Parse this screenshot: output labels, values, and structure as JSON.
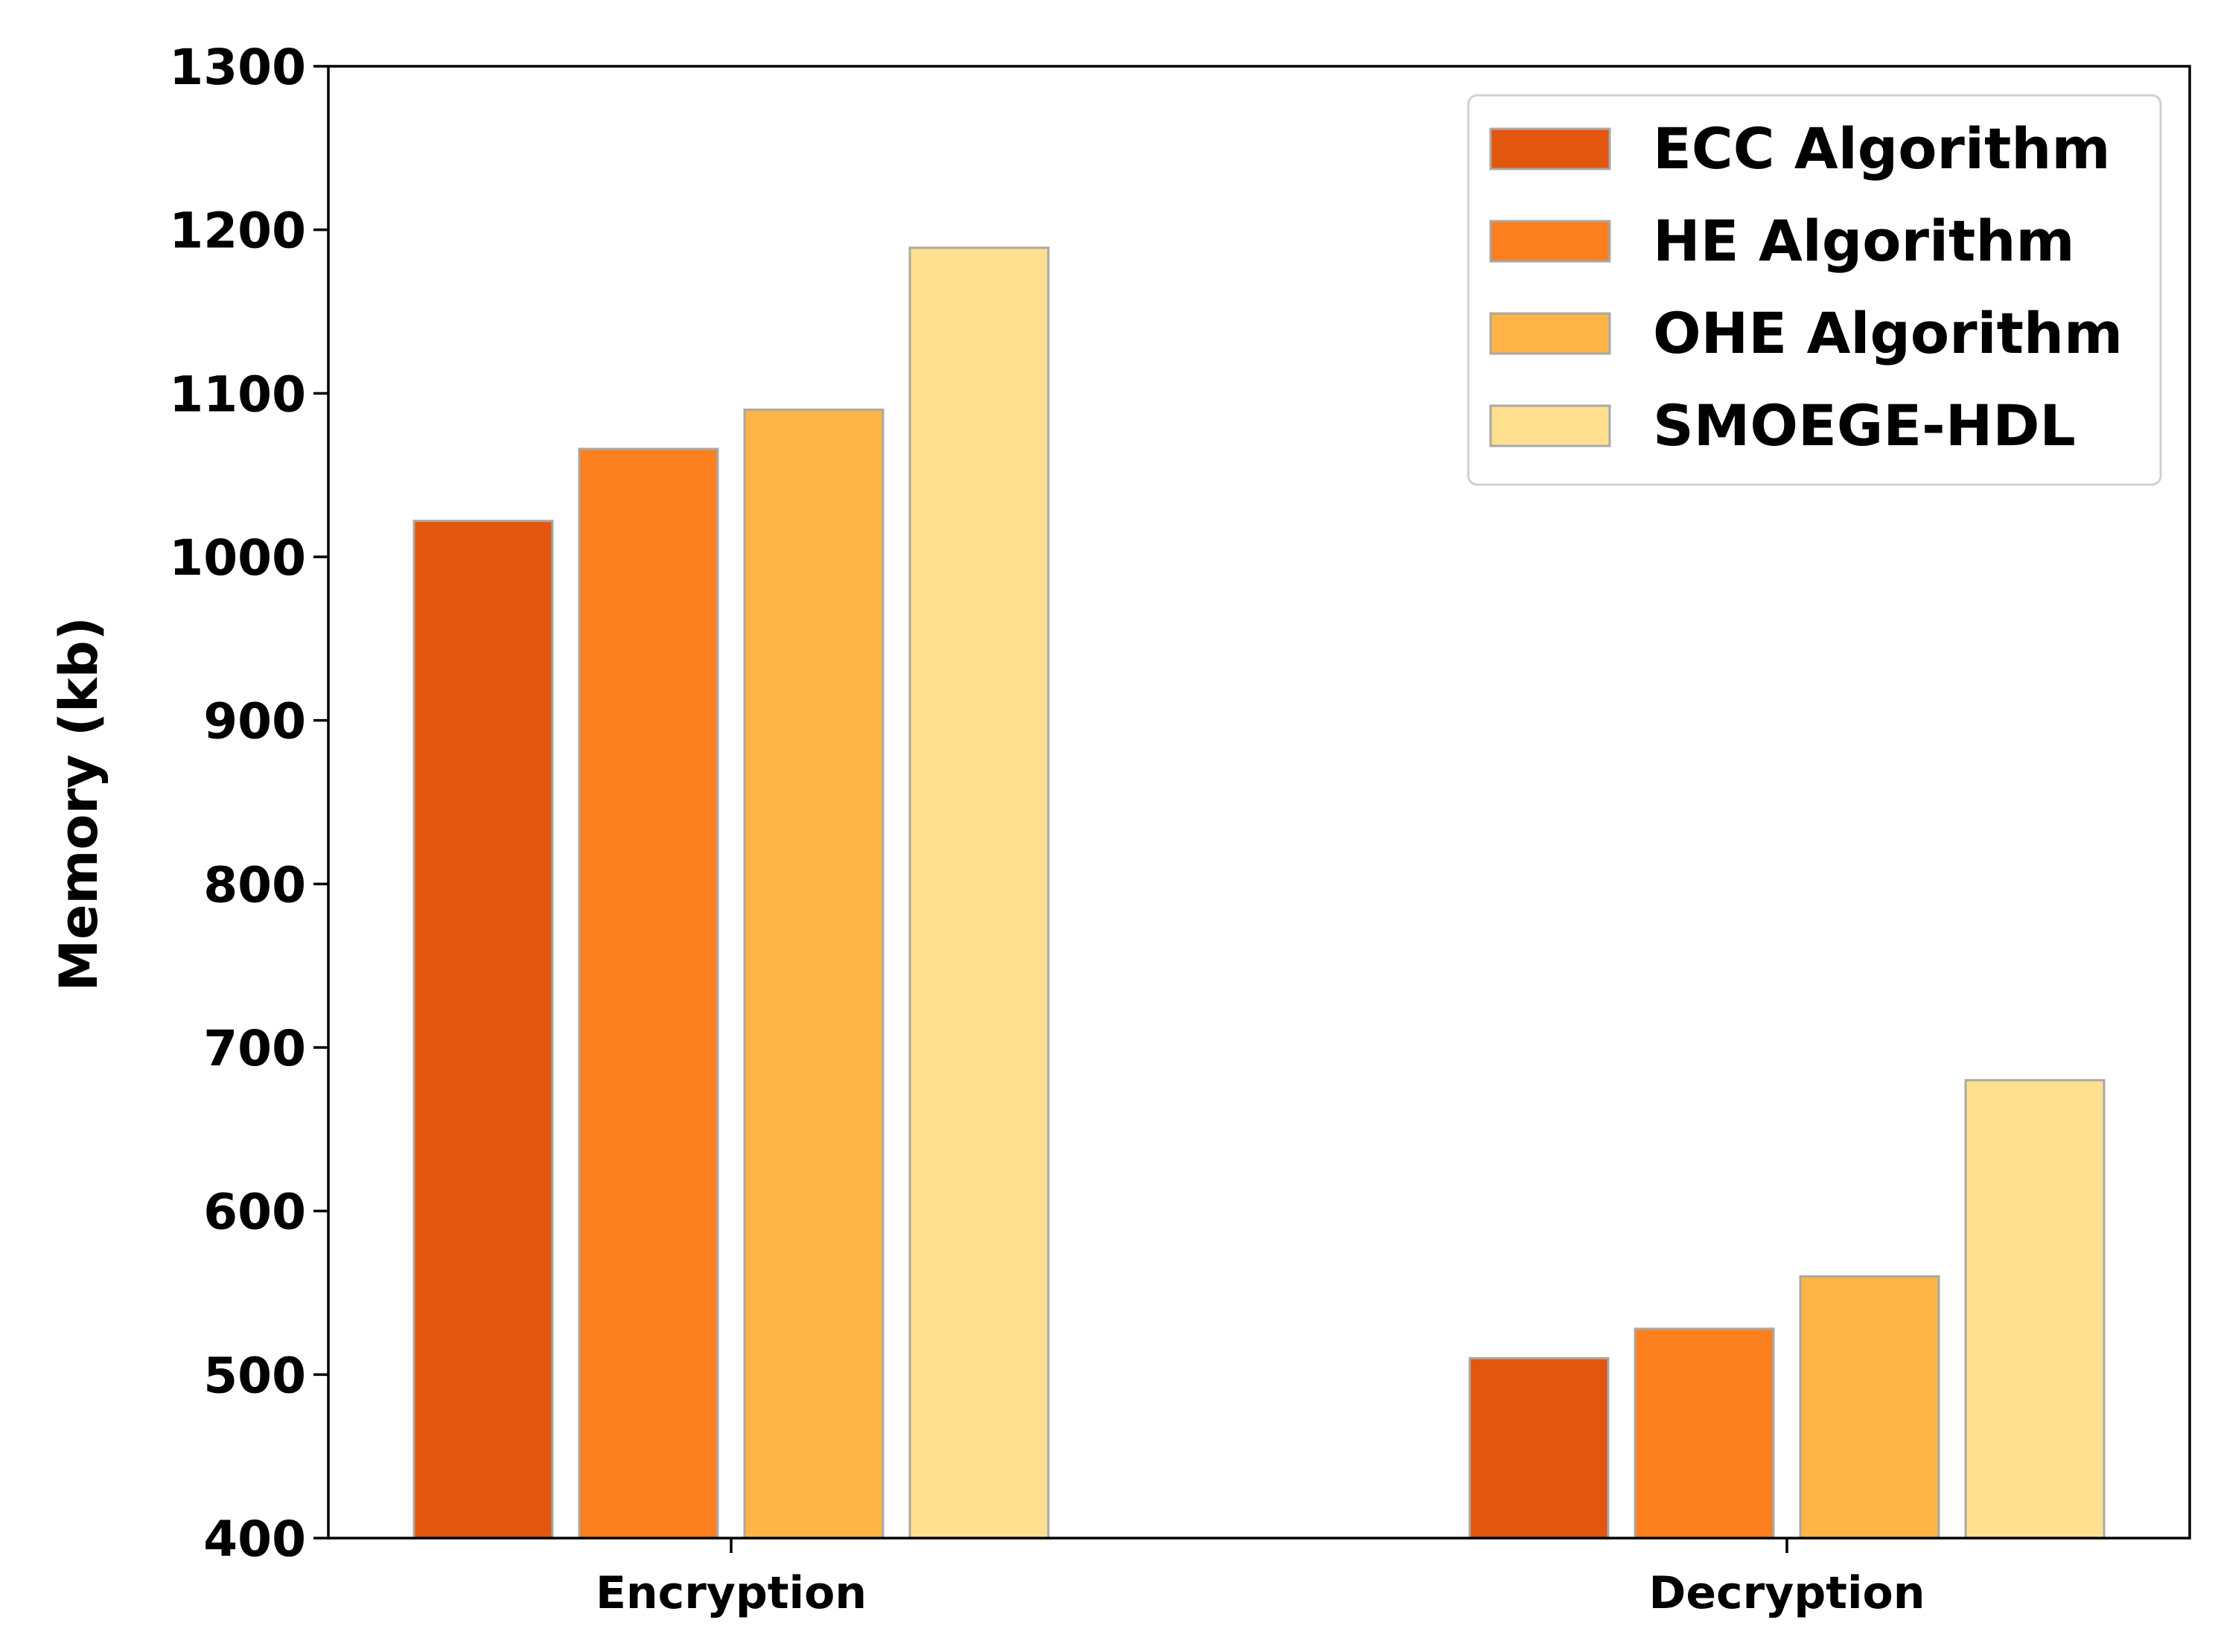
{
  "chart_data": {
    "type": "bar",
    "title": "",
    "xlabel": "",
    "ylabel": "Memory (kb)",
    "ylim": [
      400,
      1300
    ],
    "yticks": [
      400,
      500,
      600,
      700,
      800,
      900,
      1000,
      1100,
      1200,
      1300
    ],
    "categories": [
      "Encryption",
      "Decryption"
    ],
    "series": [
      {
        "name": "ECC Algorithm",
        "color": "#e2560d",
        "values": [
          1022,
          510
        ]
      },
      {
        "name": "HE Algorithm",
        "color": "#fc8020",
        "values": [
          1066,
          528
        ]
      },
      {
        "name": "OHE Algorithm",
        "color": "#feb446",
        "values": [
          1090,
          560
        ]
      },
      {
        "name": "SMOEGE-HDL",
        "color": "#fee08f",
        "values": [
          1189,
          680
        ]
      }
    ],
    "grid": false,
    "legend_position": "top-right"
  }
}
